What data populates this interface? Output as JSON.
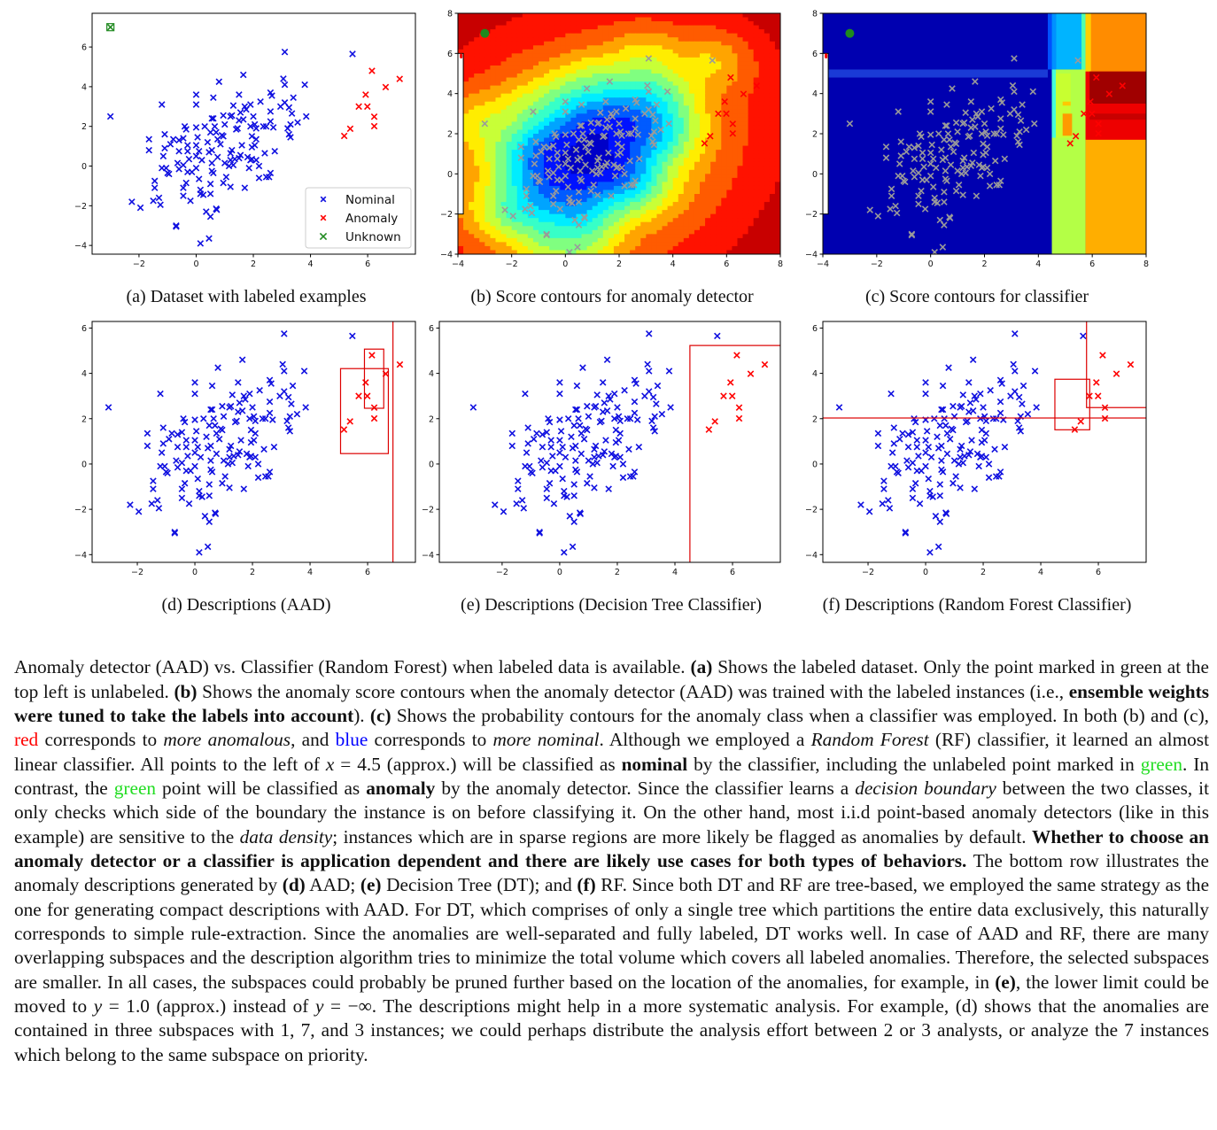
{
  "chart_data": {
    "type": "scatter",
    "legend": {
      "placement": "lower-right",
      "entries": [
        "Nominal",
        "Anomaly",
        "Unknown"
      ]
    },
    "colors": {
      "nominal": "#1010e0",
      "anomaly": "#ff0000",
      "unknown": "#228b22",
      "nominal_on_contours": "#9a9a9a"
    },
    "nominal": [
      [
        -3,
        2.5
      ],
      [
        3.1,
        5.75
      ],
      [
        5.47,
        5.65
      ],
      [
        1.65,
        4.6
      ],
      [
        0.8,
        4.25
      ],
      [
        3.05,
        4.4
      ],
      [
        3.1,
        4.1
      ],
      [
        3.8,
        4.1
      ],
      [
        0,
        3.6
      ],
      [
        0.6,
        3.45
      ],
      [
        -1.2,
        3.1
      ],
      [
        0,
        3.1
      ],
      [
        1.3,
        3.05
      ],
      [
        1.5,
        3.6
      ],
      [
        2.6,
        3.7
      ],
      [
        2.65,
        3.55
      ],
      [
        2.25,
        3.25
      ],
      [
        3.4,
        3.45
      ],
      [
        3.1,
        3.2
      ],
      [
        2.95,
        3.0
      ],
      [
        3.25,
        2.95
      ],
      [
        3.35,
        2.65
      ],
      [
        3.85,
        2.5
      ],
      [
        3.55,
        2.2
      ],
      [
        3.3,
        2.1
      ],
      [
        3.2,
        1.9
      ],
      [
        3.25,
        1.6
      ],
      [
        3.3,
        1.45
      ],
      [
        2.6,
        2.75
      ],
      [
        2.6,
        2.25
      ],
      [
        2.7,
        1.95
      ],
      [
        2.35,
        2.0
      ],
      [
        2.45,
        2.0
      ],
      [
        2.0,
        2.5
      ],
      [
        2.05,
        2.1
      ],
      [
        2.1,
        1.9
      ],
      [
        1.9,
        2.0
      ],
      [
        1.95,
        1.5
      ],
      [
        2.1,
        1.35
      ],
      [
        2.05,
        1.05
      ],
      [
        1.9,
        3.1
      ],
      [
        1.7,
        3.0
      ],
      [
        1.75,
        2.85
      ],
      [
        1.65,
        2.35
      ],
      [
        1.5,
        2.3
      ],
      [
        1.55,
        2.7
      ],
      [
        1.4,
        1.85
      ],
      [
        1.45,
        1.9
      ],
      [
        1.25,
        2.55
      ],
      [
        1.2,
        2.5
      ],
      [
        1.0,
        2.1
      ],
      [
        0.95,
        2.55
      ],
      [
        0.6,
        2.4
      ],
      [
        0.55,
        2.4
      ],
      [
        0.65,
        2.0
      ],
      [
        0.7,
        1.7
      ],
      [
        0.9,
        1.55
      ],
      [
        0.95,
        1.5
      ],
      [
        0.85,
        1.1
      ],
      [
        0.75,
        1.35
      ],
      [
        0.5,
        1.7
      ],
      [
        0.3,
        2.0
      ],
      [
        0.0,
        1.95
      ],
      [
        -0.4,
        2.0
      ],
      [
        -0.35,
        1.85
      ],
      [
        0.05,
        1.45
      ],
      [
        -0.6,
        1.3
      ],
      [
        -0.45,
        1.4
      ],
      [
        -0.8,
        1.35
      ],
      [
        -1.1,
        1.6
      ],
      [
        -1.65,
        1.35
      ],
      [
        -1.65,
        0.8
      ],
      [
        -1.1,
        0.9
      ],
      [
        -1.15,
        0.5
      ],
      [
        -0.9,
        1.1
      ],
      [
        -0.3,
        1.05
      ],
      [
        0.0,
        1.05
      ],
      [
        0.1,
        0.75
      ],
      [
        0.4,
        1.2
      ],
      [
        0.45,
        0.7
      ],
      [
        0.55,
        0.8
      ],
      [
        0.2,
        0.3
      ],
      [
        0,
        0.5
      ],
      [
        -0.3,
        0.75
      ],
      [
        -0.6,
        0.75
      ],
      [
        -0.65,
        0.15
      ],
      [
        -0.6,
        -0.15
      ],
      [
        -0.45,
        0.05
      ],
      [
        -0.3,
        -0.3
      ],
      [
        -0.15,
        -0.3
      ],
      [
        0.0,
        -0.1
      ],
      [
        -0.25,
        0.35
      ],
      [
        0.1,
        -0.65
      ],
      [
        -1.2,
        -0.1
      ],
      [
        -1.05,
        -0.1
      ],
      [
        -0.95,
        -0.4
      ],
      [
        -1.0,
        -0.35
      ],
      [
        0.55,
        0.15
      ],
      [
        0.55,
        -0.25
      ],
      [
        0.6,
        -0.35
      ],
      [
        0.75,
        0.45
      ],
      [
        1.0,
        0.15
      ],
      [
        1.15,
        0.0
      ],
      [
        1.2,
        0.3
      ],
      [
        1.2,
        0.65
      ],
      [
        1.25,
        0.8
      ],
      [
        1.3,
        0.05
      ],
      [
        1.35,
        0.35
      ],
      [
        1.55,
        0.55
      ],
      [
        1.5,
        0.4
      ],
      [
        1.6,
        1.05
      ],
      [
        1.8,
        0.45
      ],
      [
        1.9,
        0.3
      ],
      [
        1.95,
        0.35
      ],
      [
        2.1,
        0.3
      ],
      [
        1.85,
        -0.1
      ],
      [
        1.95,
        0.95
      ],
      [
        2.2,
        0.0
      ],
      [
        2.4,
        0.65
      ],
      [
        2.75,
        0.75
      ],
      [
        2.6,
        -0.35
      ],
      [
        2.45,
        -0.55
      ],
      [
        2.55,
        -0.55
      ],
      [
        2.2,
        -0.6
      ],
      [
        1.7,
        -1.1
      ],
      [
        1.2,
        -1.05
      ],
      [
        1.05,
        -0.55
      ],
      [
        0.95,
        -0.85
      ],
      [
        0.5,
        -0.9
      ],
      [
        0.5,
        -1.4
      ],
      [
        0.25,
        -1.45
      ],
      [
        0.15,
        -1.2
      ],
      [
        0.15,
        -1.4
      ],
      [
        -0.2,
        -1.75
      ],
      [
        -0.35,
        -0.85
      ],
      [
        -0.45,
        -1.1
      ],
      [
        -0.45,
        -1.5
      ],
      [
        -1.45,
        -0.75
      ],
      [
        -1.45,
        -1.1
      ],
      [
        -1.3,
        -1.6
      ],
      [
        -1.5,
        -1.75
      ],
      [
        -1.25,
        -1.95
      ],
      [
        -2.25,
        -1.8
      ],
      [
        -1.95,
        -2.1
      ],
      [
        0.35,
        -2.3
      ],
      [
        0.5,
        -2.55
      ],
      [
        0.7,
        -2.15
      ],
      [
        0.72,
        -2.2
      ],
      [
        -0.7,
        -3.0
      ],
      [
        -0.7,
        -3.05
      ],
      [
        0.45,
        -3.65
      ],
      [
        0.15,
        -3.9
      ]
    ],
    "anomaly": [
      [
        6.15,
        4.8
      ],
      [
        7.12,
        4.39
      ],
      [
        6.63,
        3.98
      ],
      [
        5.93,
        3.6
      ],
      [
        5.69,
        3.0
      ],
      [
        5.99,
        3.0
      ],
      [
        6.23,
        2.49
      ],
      [
        6.23,
        2.01
      ],
      [
        5.39,
        1.88
      ],
      [
        5.18,
        1.52
      ]
    ],
    "unknown": [
      [
        -3,
        7
      ]
    ],
    "panels": [
      {
        "id": "a",
        "caption": "(a) Dataset with labeled examples",
        "background": "none",
        "xlim": [
          -3.64,
          7.67
        ],
        "ylim": [
          -4.44,
          7.7
        ],
        "xticks": [
          -2,
          0,
          2,
          4,
          6
        ],
        "yticks": [
          -4,
          -2,
          0,
          2,
          4,
          6
        ],
        "legend": true,
        "descriptions": []
      },
      {
        "id": "b",
        "caption": "(b) Score contours for anomaly detector",
        "background": "anomaly-score-contours",
        "colormap": "jet",
        "xlim": [
          -4,
          8
        ],
        "ylim": [
          -4,
          8
        ],
        "xticks": [
          -4,
          -2,
          0,
          2,
          4,
          6,
          8
        ],
        "yticks": [
          -4,
          -2,
          0,
          2,
          4,
          6,
          8
        ],
        "descriptions": []
      },
      {
        "id": "c",
        "caption": "(c) Score contours for classifier",
        "background": "classifier-probability-contours",
        "colormap": "jet",
        "xlim": [
          -4,
          8
        ],
        "ylim": [
          -4,
          8
        ],
        "xticks": [
          -4,
          -2,
          0,
          2,
          4,
          6,
          8
        ],
        "yticks": [
          -4,
          -2,
          0,
          2,
          4,
          6,
          8
        ],
        "descriptions": []
      },
      {
        "id": "d",
        "caption": "(d) Descriptions (AAD)",
        "background": "none",
        "xlim": [
          -3.57,
          7.66
        ],
        "ylim": [
          -4.34,
          6.29
        ],
        "xticks": [
          -2,
          0,
          2,
          4,
          6
        ],
        "yticks": [
          -4,
          -2,
          0,
          2,
          4,
          6
        ],
        "descriptions": [
          {
            "x": [
              5.06,
              6.72
            ],
            "y": [
              0.46,
              4.21
            ]
          },
          {
            "x": [
              5.89,
              6.56
            ],
            "y": [
              2.46,
              5.07
            ]
          },
          {
            "x": [
              6.88,
              null
            ],
            "y": [
              null,
              null
            ]
          }
        ]
      },
      {
        "id": "e",
        "caption": "(e) Descriptions (Decision Tree Classifier)",
        "background": "none",
        "xlim": [
          -4.18,
          7.66
        ],
        "ylim": [
          -4.34,
          6.29
        ],
        "xticks": [
          -2,
          0,
          2,
          4,
          6
        ],
        "yticks": [
          -4,
          -2,
          0,
          2,
          4,
          6
        ],
        "descriptions": [
          {
            "x": [
              4.52,
              null
            ],
            "y": [
              null,
              5.23
            ]
          }
        ]
      },
      {
        "id": "f",
        "caption": "(f) Descriptions (Random Forest Classifier)",
        "background": "none",
        "xlim": [
          -3.57,
          7.66
        ],
        "ylim": [
          -4.34,
          6.29
        ],
        "xticks": [
          -2,
          0,
          2,
          4,
          6
        ],
        "yticks": [
          -4,
          -2,
          0,
          2,
          4,
          6
        ],
        "descriptions": [
          {
            "x": [
              5.59,
              null
            ],
            "y": [
              2.49,
              null
            ]
          },
          {
            "x": [
              null,
              null
            ],
            "y": [
              2.03,
              null
            ]
          },
          {
            "x": [
              4.49,
              5.7
            ],
            "y": [
              1.51,
              3.74
            ]
          }
        ]
      }
    ]
  },
  "caption": [
    {
      "t": "Anomaly detector (AAD) vs. Classifier (Random Forest) when labeled data is available. ",
      "s": ""
    },
    {
      "t": "(a)",
      "s": "b"
    },
    {
      "t": " Shows the labeled dataset. Only the point marked in green at the top left is unlabeled. ",
      "s": ""
    },
    {
      "t": "(b)",
      "s": "b"
    },
    {
      "t": " Shows the anomaly score contours when the anomaly detector (AAD) was trained with the labeled instances (i.e., ",
      "s": ""
    },
    {
      "t": "ensemble weights were tuned to take the labels into account",
      "s": "b"
    },
    {
      "t": "). ",
      "s": ""
    },
    {
      "t": "(c)",
      "s": "b"
    },
    {
      "t": " Shows the probability contours for the anomaly class when a classifier was employed. In both (b) and (c), ",
      "s": ""
    },
    {
      "t": "red",
      "s": "red"
    },
    {
      "t": " corresponds to ",
      "s": ""
    },
    {
      "t": "more anomalous",
      "s": "i"
    },
    {
      "t": ", and ",
      "s": ""
    },
    {
      "t": "blue",
      "s": "blue"
    },
    {
      "t": " corresponds to ",
      "s": ""
    },
    {
      "t": "more nominal",
      "s": "i"
    },
    {
      "t": ". Although we employed a ",
      "s": ""
    },
    {
      "t": "Random Forest",
      "s": "i"
    },
    {
      "t": " (RF) classifier, it learned an almost linear classifier. All points to the left of ",
      "s": ""
    },
    {
      "t": "x",
      "s": "i"
    },
    {
      "t": " = 4.5 (approx.)  will be classified as ",
      "s": ""
    },
    {
      "t": "nominal",
      "s": "b"
    },
    {
      "t": " by the classifier, including the unlabeled point marked in ",
      "s": ""
    },
    {
      "t": "green",
      "s": "green"
    },
    {
      "t": ". In contrast, the ",
      "s": ""
    },
    {
      "t": "green",
      "s": "green"
    },
    {
      "t": " point will be classified as ",
      "s": ""
    },
    {
      "t": "anomaly",
      "s": "b"
    },
    {
      "t": " by the anomaly detector. Since the classifier learns a ",
      "s": ""
    },
    {
      "t": "decision boundary",
      "s": "i"
    },
    {
      "t": " between the two classes, it only checks which side of the boundary the instance is on before classifying it. On the other hand, most i.i.d point-based anomaly detectors (like in this example) are sensitive to the ",
      "s": ""
    },
    {
      "t": "data density",
      "s": "i"
    },
    {
      "t": "; instances which are in sparse regions are more likely be flagged as anomalies by default. ",
      "s": ""
    },
    {
      "t": "Whether to choose an anomaly detector or a classifier is application dependent and there are likely use cases for both types of behaviors.",
      "s": "b"
    },
    {
      "t": " The bottom row illustrates the anomaly descriptions generated by ",
      "s": ""
    },
    {
      "t": "(d)",
      "s": "b"
    },
    {
      "t": " AAD; ",
      "s": ""
    },
    {
      "t": "(e)",
      "s": "b"
    },
    {
      "t": " Decision Tree (DT); and ",
      "s": ""
    },
    {
      "t": "(f)",
      "s": "b"
    },
    {
      "t": " RF. Since both DT and RF are tree-based, we employed the same strategy as the one for generating compact descriptions with AAD. For DT, which comprises of only a single tree which partitions the entire data exclusively, this naturally corresponds to simple rule-extraction.  Since the anomalies are well-separated and fully labeled, DT works well. In case of AAD and RF, there are many overlapping subspaces and the description algorithm tries to minimize the total volume which covers all labeled anomalies.  Therefore, the selected subspaces are smaller.  In all cases, the subspaces could probably be pruned further based on the location of the anomalies, for example, in ",
      "s": ""
    },
    {
      "t": "(e)",
      "s": "b"
    },
    {
      "t": ", the lower limit could be moved to ",
      "s": ""
    },
    {
      "t": "y",
      "s": "i"
    },
    {
      "t": " = 1.0 (approx.) instead of ",
      "s": ""
    },
    {
      "t": "y",
      "s": "i"
    },
    {
      "t": " = −∞. The descriptions might help in a more systematic analysis. For example, (d) shows that the anomalies are contained in three subspaces with 1, 7, and 3 instances; we could perhaps distribute the analysis effort between 2 or 3 analysts, or analyze the 7 instances which belong to the same subspace on priority.",
      "s": ""
    }
  ]
}
